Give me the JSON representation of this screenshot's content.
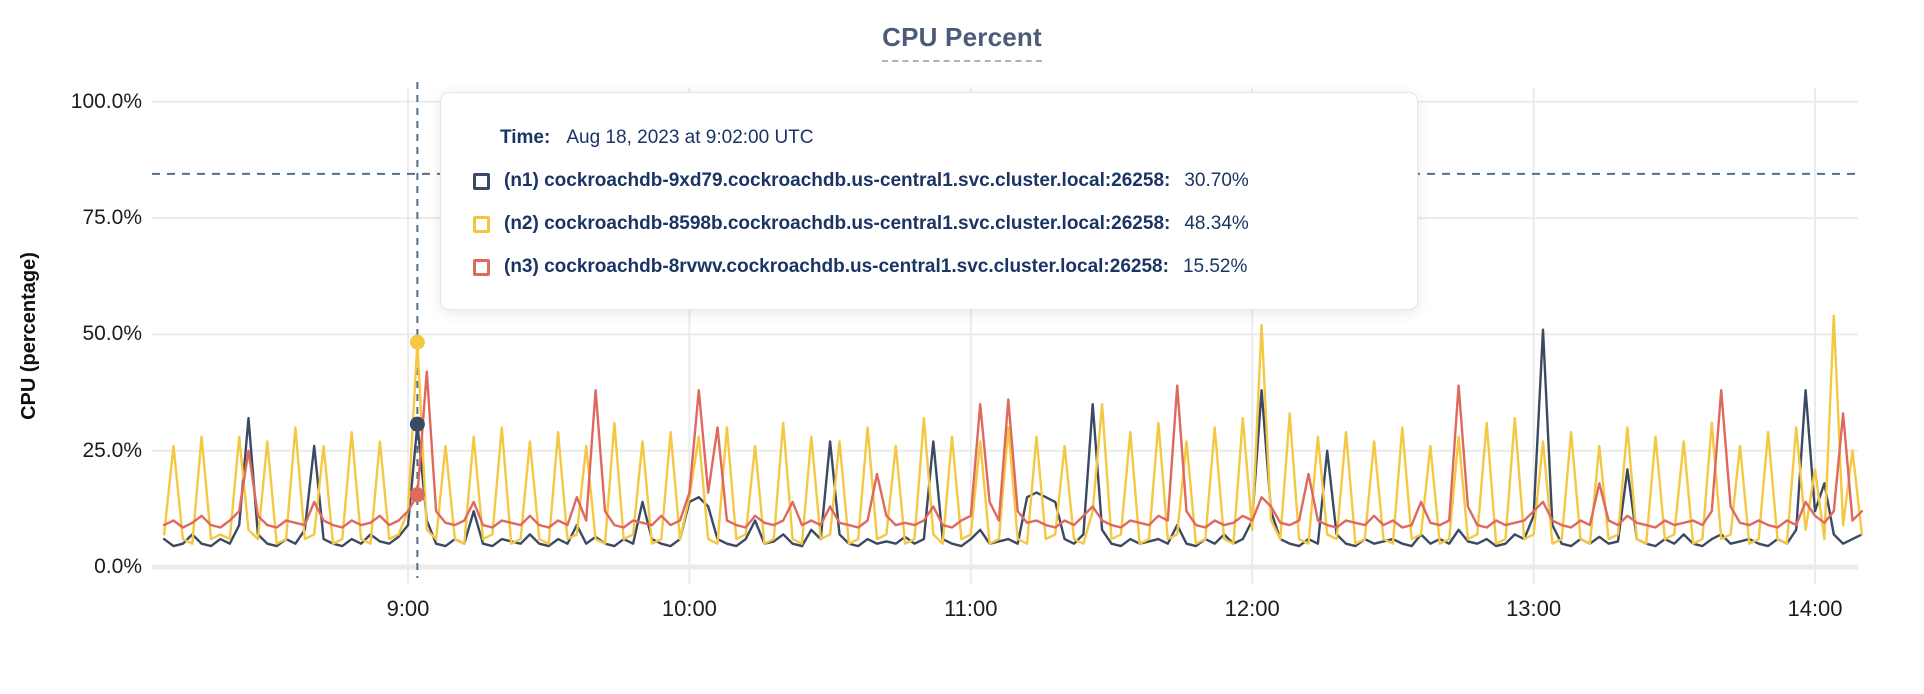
{
  "title": "CPU Percent",
  "colors": {
    "grid": "#ebebeb",
    "guide": "#52708a",
    "title": "#4c5b77",
    "tooltip_text": "#1a3464",
    "series_n1": "#3b4a63",
    "series_n2": "#f5c843",
    "series_n3": "#e0695e"
  },
  "y_axis": {
    "label": "CPU (percentage)",
    "ticks": [
      {
        "label": "0.0%",
        "value": 0
      },
      {
        "label": "25.0%",
        "value": 25
      },
      {
        "label": "50.0%",
        "value": 50
      },
      {
        "label": "75.0%",
        "value": 75
      },
      {
        "label": "100.0%",
        "value": 100
      }
    ]
  },
  "x_axis": {
    "ticks": [
      {
        "label": "9:00",
        "minutes": 540
      },
      {
        "label": "10:00",
        "minutes": 600
      },
      {
        "label": "11:00",
        "minutes": 660
      },
      {
        "label": "12:00",
        "minutes": 720
      },
      {
        "label": "13:00",
        "minutes": 780
      },
      {
        "label": "14:00",
        "minutes": 840
      }
    ]
  },
  "tooltip": {
    "time_label": "Time:",
    "time_value": "Aug 18, 2023 at 9:02:00 UTC",
    "rows": [
      {
        "id": "n1",
        "label": "(n1) cockroachdb-9xd79.cockroachdb.us-central1.svc.cluster.local:26258:",
        "value": "30.70%",
        "color": "#3b4a63"
      },
      {
        "id": "n2",
        "label": "(n2) cockroachdb-8598b.cockroachdb.us-central1.svc.cluster.local:26258:",
        "value": "48.34%",
        "color": "#f2c63f"
      },
      {
        "id": "n3",
        "label": "(n3) cockroachdb-8rvwv.cockroachdb.us-central1.svc.cluster.local:26258:",
        "value": "15.52%",
        "color": "#e0695e"
      }
    ]
  },
  "chart_data": {
    "type": "line",
    "title": "CPU Percent",
    "xlabel": "",
    "ylabel": "CPU (percentage)",
    "ylim": [
      0,
      100
    ],
    "grid": true,
    "legend_position": "tooltip",
    "x_unit": "minutes since midnight UTC, Aug 18 2023",
    "x_start_minutes": 488,
    "x_step_minutes": 2,
    "x_tick_minutes": [
      540,
      600,
      660,
      720,
      780,
      840
    ],
    "x_tick_labels": [
      "9:00",
      "10:00",
      "11:00",
      "12:00",
      "13:00",
      "14:00"
    ],
    "threshold_percent": 84.5,
    "crosshair": {
      "index": 27,
      "time": "9:02",
      "time_label": "Aug 18, 2023 at 9:02:00 UTC"
    },
    "series": [
      {
        "id": "n1",
        "name": "(n1) cockroachdb-9xd79.cockroachdb.us-central1.svc.cluster.local:26258",
        "color": "#3b4a63",
        "hover_value": 30.7,
        "values": [
          6,
          4.5,
          5,
          7,
          5,
          4.5,
          6,
          5,
          9,
          32,
          7,
          5,
          4.5,
          6,
          5,
          8,
          26,
          6,
          5,
          4.5,
          6,
          5,
          7,
          5.5,
          5,
          6.5,
          9,
          30.7,
          10,
          5,
          4.5,
          6,
          5,
          12,
          5,
          4.5,
          6,
          5.5,
          5,
          7,
          5,
          4.5,
          6,
          5,
          9,
          5,
          6.5,
          5,
          4.5,
          6,
          5,
          14,
          6,
          5,
          4.5,
          6,
          14,
          15,
          13,
          6,
          5,
          4.5,
          6,
          10,
          5,
          5.5,
          7,
          5,
          4.5,
          8,
          6,
          27,
          7,
          5,
          4.5,
          6,
          5,
          5.5,
          5,
          6.5,
          5,
          6,
          27,
          6,
          5,
          4.5,
          6,
          8,
          5,
          5.5,
          6,
          5,
          15,
          16,
          15,
          14,
          6,
          5,
          7,
          35,
          8,
          5,
          4.5,
          6,
          5,
          5.5,
          6,
          5,
          9,
          5,
          4.5,
          6,
          5,
          7,
          5,
          6,
          10,
          38,
          12,
          6,
          5,
          4.5,
          6,
          5,
          25,
          7,
          5,
          4.5,
          6,
          5,
          5.5,
          6,
          5,
          4.5,
          7,
          5,
          6,
          5,
          8,
          5.5,
          5,
          6,
          4.5,
          5,
          7,
          6,
          11,
          51,
          9,
          5,
          4.5,
          6,
          5,
          6.5,
          5,
          5.5,
          21,
          6,
          5,
          4.5,
          6,
          5,
          7,
          5,
          4.5,
          6,
          7,
          5,
          5.5,
          6,
          5,
          4.5,
          6,
          5,
          8,
          38,
          12,
          18,
          7,
          5,
          6,
          7
        ]
      },
      {
        "id": "n2",
        "name": "(n2) cockroachdb-8598b.cockroachdb.us-central1.svc.cluster.local:26258",
        "color": "#f5c843",
        "hover_value": 48.34,
        "values": [
          7,
          26,
          6,
          5,
          28,
          6,
          7,
          6,
          28,
          8,
          6,
          27,
          5,
          6,
          30,
          6,
          7,
          26,
          5,
          6,
          29,
          6,
          5,
          27,
          6,
          7,
          12,
          48.34,
          8,
          6,
          26,
          6,
          5,
          28,
          6,
          7,
          30,
          5,
          6,
          27,
          6,
          5,
          29,
          6,
          7,
          26,
          6,
          5,
          31,
          6,
          7,
          27,
          5,
          6,
          29,
          6,
          15,
          28,
          6,
          5,
          30,
          6,
          7,
          26,
          5,
          6,
          31,
          6,
          5,
          28,
          6,
          7,
          27,
          5,
          6,
          30,
          6,
          7,
          26,
          5,
          6,
          32,
          7,
          5,
          28,
          6,
          7,
          27,
          5,
          6,
          30,
          6,
          5,
          28,
          6,
          7,
          26,
          6,
          5,
          12,
          35,
          6,
          7,
          29,
          5,
          6,
          31,
          6,
          7,
          27,
          5,
          6,
          30,
          6,
          5,
          32,
          8,
          52,
          10,
          6,
          33,
          6,
          5,
          28,
          7,
          6,
          29,
          5,
          6,
          27,
          6,
          5,
          30,
          6,
          7,
          26,
          5,
          6,
          28,
          6,
          7,
          31,
          5,
          6,
          32,
          6,
          7,
          27,
          5,
          6,
          29,
          6,
          5,
          26,
          6,
          7,
          30,
          6,
          5,
          28,
          6,
          7,
          27,
          5,
          6,
          31,
          6,
          7,
          26,
          5,
          6,
          29,
          6,
          5,
          30,
          8,
          21,
          6,
          54,
          9,
          25,
          7
        ]
      },
      {
        "id": "n3",
        "name": "(n3) cockroachdb-8rvwv.cockroachdb.us-central1.svc.cluster.local:26258",
        "color": "#e0695e",
        "hover_value": 15.52,
        "values": [
          9,
          10,
          8.5,
          9.5,
          11,
          9,
          8.5,
          10,
          12,
          25,
          11,
          9,
          8.5,
          10,
          9.5,
          9,
          14,
          10,
          9,
          8.5,
          10,
          9,
          9.5,
          11,
          9,
          10,
          12,
          15.52,
          42,
          12,
          9.5,
          9,
          10,
          14,
          9,
          8.5,
          10,
          9.5,
          9,
          11,
          9,
          8.5,
          10,
          9,
          15,
          10,
          38,
          12,
          9,
          8.5,
          10,
          9.5,
          9,
          11,
          9,
          10,
          16,
          38,
          16,
          30,
          10,
          9,
          8.5,
          11,
          9.5,
          9,
          10,
          14,
          9,
          10,
          9,
          13,
          9.5,
          9,
          8.5,
          10,
          20,
          11,
          9,
          9.5,
          9,
          10,
          13,
          9,
          8.5,
          10,
          11,
          35,
          14,
          10,
          36,
          12,
          9.5,
          10,
          9,
          8.5,
          10,
          9,
          11,
          13,
          10,
          9,
          8.5,
          10,
          9.5,
          9,
          11,
          10,
          39,
          12,
          9,
          8.5,
          10,
          9,
          9.5,
          11,
          10,
          15,
          13,
          9.5,
          9,
          10,
          20,
          10,
          9,
          8.5,
          10,
          9.5,
          9,
          11,
          9,
          10,
          8.5,
          9,
          14,
          9.5,
          9,
          10,
          39,
          13,
          9,
          8.5,
          10,
          9,
          9.5,
          10,
          12,
          14,
          10,
          9,
          8.5,
          10,
          9,
          18,
          10,
          9,
          11,
          9.5,
          9,
          8.5,
          10,
          9,
          9.5,
          10,
          9,
          12,
          38,
          13,
          9.5,
          9,
          10,
          9,
          8.5,
          10,
          9,
          14,
          11,
          9.5,
          12,
          33,
          10,
          12
        ]
      }
    ]
  }
}
